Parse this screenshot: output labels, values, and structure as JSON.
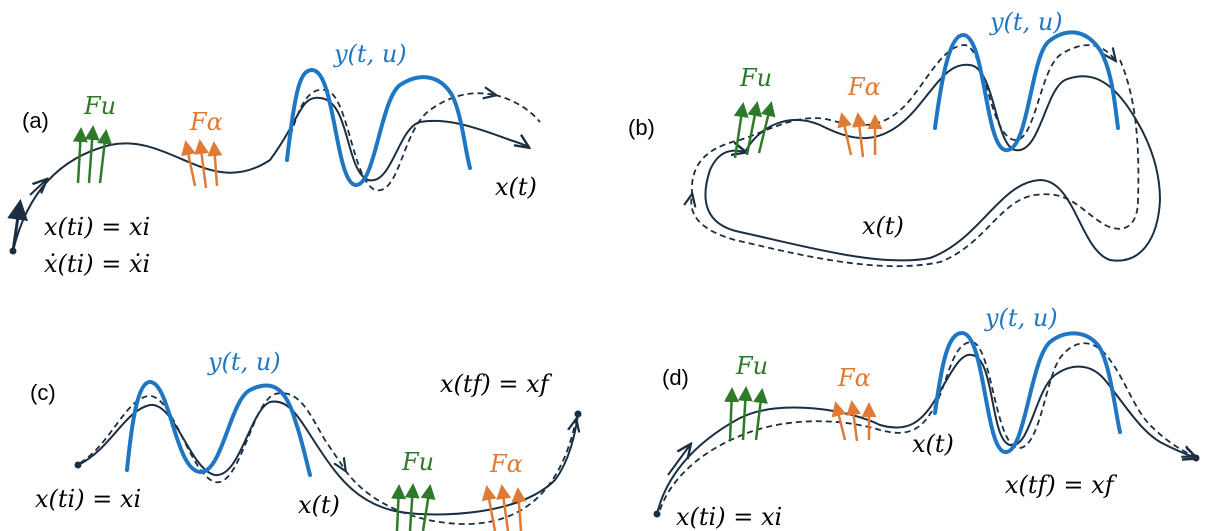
{
  "colors": {
    "trajectory": "#1c2f42",
    "observation": "#1f77c4",
    "force_u": "#2f7a2a",
    "force_alpha": "#e07b35"
  },
  "panels": {
    "a": {
      "label": "(a)",
      "obs_label": "y(t, u)",
      "traj_label": "x(t)",
      "force_u_label": "Fu",
      "force_alpha_label": "Fα",
      "init_pos": "x(ti) = xi",
      "init_vel": "ẋ(ti) = ẋi"
    },
    "b": {
      "label": "(b)",
      "obs_label": "y(t, u)",
      "traj_label": "x(t)",
      "force_u_label": "Fu",
      "force_alpha_label": "Fα"
    },
    "c": {
      "label": "(c)",
      "obs_label": "y(t, u)",
      "traj_label": "x(t)",
      "force_u_label": "Fu",
      "force_alpha_label": "Fα",
      "init_pos": "x(ti) = xi",
      "final_pos": "x(tf) = xf"
    },
    "d": {
      "label": "(d)",
      "obs_label": "y(t, u)",
      "traj_label": "x(t)",
      "force_u_label": "Fu",
      "force_alpha_label": "Fα",
      "init_pos": "x(ti) = xi",
      "final_pos": "x(tf) = xf"
    }
  }
}
